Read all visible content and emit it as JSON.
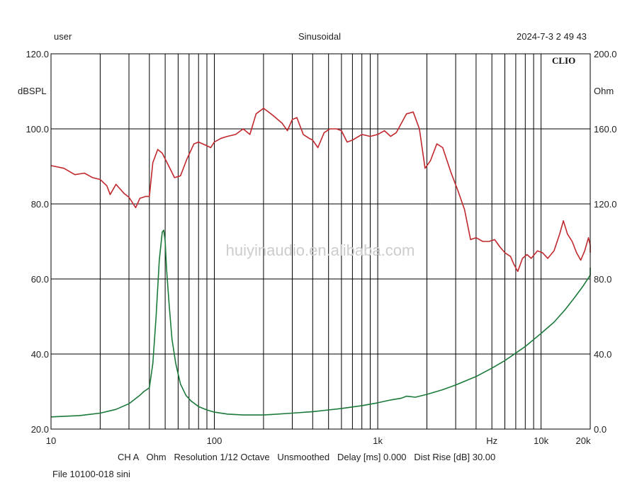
{
  "header": {
    "user": "user",
    "mode": "Sinusoidal",
    "datetime": "2024-7-3 2 49 43"
  },
  "brand": "CLIO",
  "watermark": "huiyinaudio.en.alibaba.com",
  "footer": {
    "line1": "CH A   Ohm   Resolution 1/12 Octave   Unsmoothed   Delay [ms] 0.000   Dist Rise [dB] 30.00",
    "file": "File  10100-018 sini"
  },
  "colors": {
    "spl": "#c0282d",
    "impedance": "#1b7a3a",
    "grid": "#000000"
  },
  "chart_data": {
    "type": "line",
    "x_scale": "log",
    "xlim": [
      10,
      20000
    ],
    "grid": true,
    "x_ticks": [
      {
        "value": 10,
        "label": "10"
      },
      {
        "value": 100,
        "label": "100"
      },
      {
        "value": 1000,
        "label": "1k"
      },
      {
        "value": 5000,
        "label": "Hz"
      },
      {
        "value": 10000,
        "label": "10k"
      },
      {
        "value": 20000,
        "label": "20k"
      }
    ],
    "y_left": {
      "unit_label": "dBSPL",
      "lim": [
        20,
        120
      ],
      "ticks": [
        {
          "value": 120,
          "label": "120.0"
        },
        {
          "value": 100,
          "label": "100.0"
        },
        {
          "value": 80,
          "label": "80.0"
        },
        {
          "value": 60,
          "label": "60.0"
        },
        {
          "value": 40,
          "label": "40.0"
        },
        {
          "value": 20,
          "label": "20.0"
        }
      ]
    },
    "y_right": {
      "unit_label": "Ohm",
      "lim": [
        0,
        200
      ],
      "ticks": [
        {
          "value": 200,
          "label": "200.0"
        },
        {
          "value": 160,
          "label": "160.0"
        },
        {
          "value": 120,
          "label": "120.0"
        },
        {
          "value": 80,
          "label": "80.0"
        },
        {
          "value": 40,
          "label": "40.0"
        },
        {
          "value": 0,
          "label": "0.0"
        }
      ]
    },
    "series": [
      {
        "axis": "left",
        "color": "#c0282d",
        "points": [
          [
            10,
            90.2
          ],
          [
            12,
            89.5
          ],
          [
            14,
            87.8
          ],
          [
            16,
            88.2
          ],
          [
            18,
            87.0
          ],
          [
            20,
            86.5
          ],
          [
            22,
            84.8
          ],
          [
            23,
            82.5
          ],
          [
            25,
            85.2
          ],
          [
            28,
            82.8
          ],
          [
            30,
            81.8
          ],
          [
            33,
            79.0
          ],
          [
            35,
            81.5
          ],
          [
            38,
            82.0
          ],
          [
            40,
            82.0
          ],
          [
            42,
            91.0
          ],
          [
            45,
            94.5
          ],
          [
            48,
            93.5
          ],
          [
            52,
            90.5
          ],
          [
            57,
            87.0
          ],
          [
            62,
            87.5
          ],
          [
            68,
            92.0
          ],
          [
            75,
            96.0
          ],
          [
            80,
            96.5
          ],
          [
            90,
            95.5
          ],
          [
            95,
            95.0
          ],
          [
            100,
            96.5
          ],
          [
            110,
            97.5
          ],
          [
            120,
            98.0
          ],
          [
            135,
            98.5
          ],
          [
            150,
            100.0
          ],
          [
            165,
            98.5
          ],
          [
            180,
            104.0
          ],
          [
            200,
            105.5
          ],
          [
            230,
            103.5
          ],
          [
            260,
            101.5
          ],
          [
            280,
            99.5
          ],
          [
            300,
            102.5
          ],
          [
            320,
            103.0
          ],
          [
            350,
            98.5
          ],
          [
            380,
            97.5
          ],
          [
            400,
            97.0
          ],
          [
            430,
            95.0
          ],
          [
            470,
            99.0
          ],
          [
            510,
            100.0
          ],
          [
            560,
            100.0
          ],
          [
            600,
            99.5
          ],
          [
            650,
            96.5
          ],
          [
            700,
            97.0
          ],
          [
            800,
            98.5
          ],
          [
            900,
            98.0
          ],
          [
            1000,
            98.5
          ],
          [
            1100,
            99.5
          ],
          [
            1200,
            98.0
          ],
          [
            1300,
            99.0
          ],
          [
            1500,
            104.0
          ],
          [
            1650,
            104.5
          ],
          [
            1800,
            100.0
          ],
          [
            1950,
            89.5
          ],
          [
            2100,
            91.5
          ],
          [
            2300,
            96.0
          ],
          [
            2500,
            95.0
          ],
          [
            2800,
            88.5
          ],
          [
            3100,
            83.5
          ],
          [
            3400,
            78.5
          ],
          [
            3700,
            70.5
          ],
          [
            4000,
            71.0
          ],
          [
            4400,
            70.0
          ],
          [
            4800,
            70.0
          ],
          [
            5200,
            70.5
          ],
          [
            5600,
            68.5
          ],
          [
            6000,
            67.0
          ],
          [
            6500,
            66.0
          ],
          [
            6800,
            64.0
          ],
          [
            7200,
            62.0
          ],
          [
            7700,
            65.5
          ],
          [
            8200,
            66.5
          ],
          [
            8700,
            65.5
          ],
          [
            9500,
            67.5
          ],
          [
            10200,
            67.0
          ],
          [
            11000,
            65.5
          ],
          [
            12000,
            67.5
          ],
          [
            13000,
            72.0
          ],
          [
            13700,
            75.5
          ],
          [
            14500,
            72.0
          ],
          [
            15500,
            70.0
          ],
          [
            16500,
            67.0
          ],
          [
            17500,
            65.0
          ],
          [
            18500,
            67.5
          ],
          [
            19500,
            71.0
          ],
          [
            20500,
            69.0
          ],
          [
            21500,
            67.0
          ]
        ]
      },
      {
        "axis": "right",
        "color": "#1b7a3a",
        "points": [
          [
            10,
            6.5
          ],
          [
            15,
            7.2
          ],
          [
            20,
            8.5
          ],
          [
            25,
            10.5
          ],
          [
            30,
            13.5
          ],
          [
            35,
            18.0
          ],
          [
            37,
            20.0
          ],
          [
            40,
            22.0
          ],
          [
            42,
            35.0
          ],
          [
            44,
            60.0
          ],
          [
            46,
            90.0
          ],
          [
            48,
            105.0
          ],
          [
            49,
            106.0
          ],
          [
            50,
            100.0
          ],
          [
            51,
            85.0
          ],
          [
            53,
            65.0
          ],
          [
            55,
            48.0
          ],
          [
            58,
            35.0
          ],
          [
            62,
            24.0
          ],
          [
            67,
            18.0
          ],
          [
            72,
            15.0
          ],
          [
            80,
            12.0
          ],
          [
            90,
            10.2
          ],
          [
            100,
            9.0
          ],
          [
            120,
            8.0
          ],
          [
            150,
            7.5
          ],
          [
            200,
            7.5
          ],
          [
            300,
            8.5
          ],
          [
            400,
            9.3
          ],
          [
            500,
            10.2
          ],
          [
            600,
            11.0
          ],
          [
            800,
            12.5
          ],
          [
            1000,
            14.0
          ],
          [
            1200,
            15.5
          ],
          [
            1400,
            16.5
          ],
          [
            1500,
            17.5
          ],
          [
            1700,
            17.0
          ],
          [
            2000,
            18.5
          ],
          [
            2500,
            21.0
          ],
          [
            3000,
            23.5
          ],
          [
            4000,
            28.0
          ],
          [
            5000,
            32.5
          ],
          [
            6000,
            36.5
          ],
          [
            7000,
            40.5
          ],
          [
            8000,
            44.0
          ],
          [
            10000,
            51.0
          ],
          [
            12000,
            57.0
          ],
          [
            14000,
            63.5
          ],
          [
            16000,
            70.0
          ],
          [
            18000,
            76.0
          ],
          [
            20000,
            82.0
          ],
          [
            21500,
            86.0
          ]
        ]
      }
    ]
  }
}
